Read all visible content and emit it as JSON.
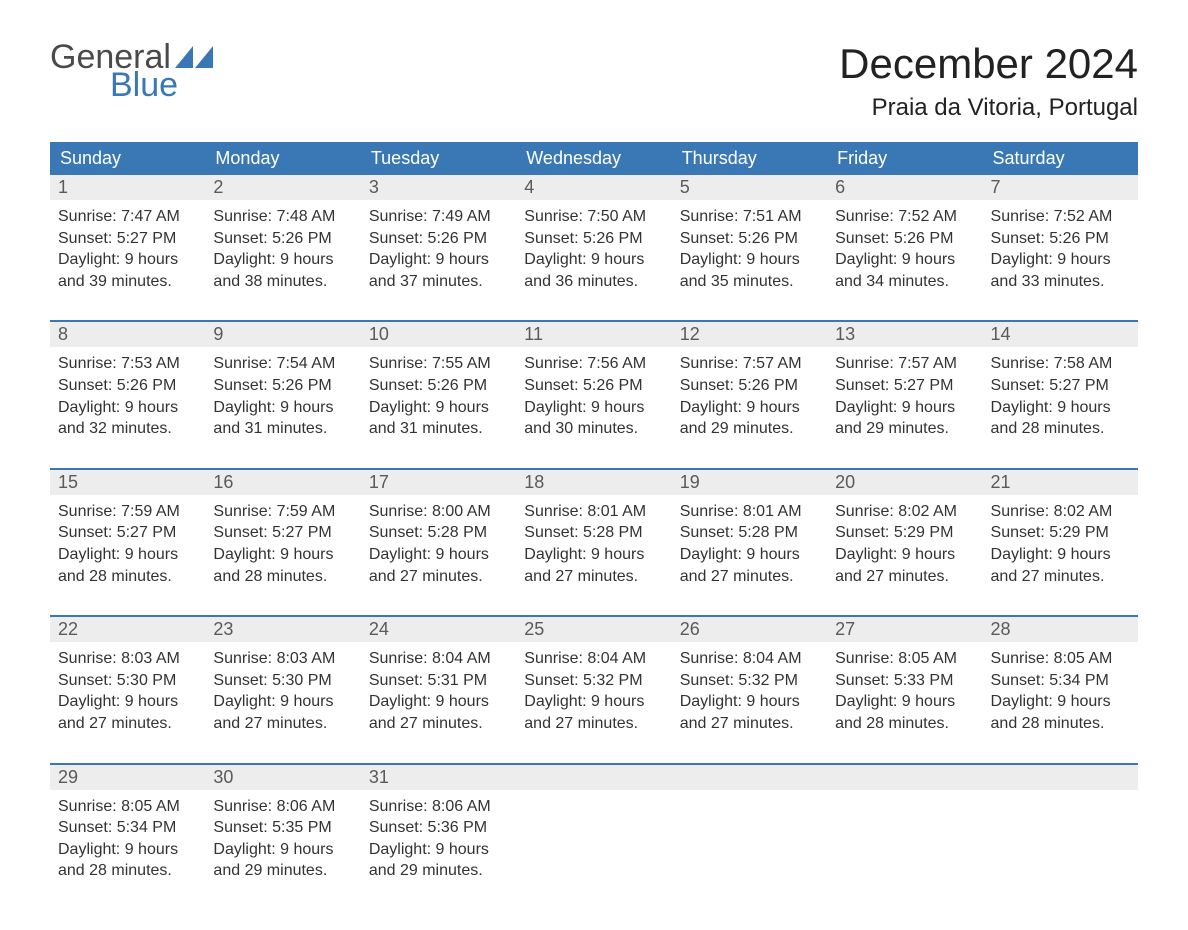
{
  "logo": {
    "part1": "General",
    "part2": "Blue",
    "flag_color": "#3a78b5",
    "text_gray": "#4a4a4a"
  },
  "title": "December 2024",
  "location": "Praia da Vitoria, Portugal",
  "colors": {
    "header_bg": "#3a78b5",
    "header_text": "#ffffff",
    "daynum_bg": "#ededed",
    "daynum_text": "#5a5a5a",
    "body_text": "#333333",
    "separator": "#3a78b5",
    "background": "#ffffff"
  },
  "fonts": {
    "title_size_pt": 32,
    "location_size_pt": 18,
    "header_size_pt": 14,
    "daynum_size_pt": 14,
    "body_size_pt": 12
  },
  "day_names": [
    "Sunday",
    "Monday",
    "Tuesday",
    "Wednesday",
    "Thursday",
    "Friday",
    "Saturday"
  ],
  "weeks": [
    [
      {
        "n": "1",
        "sunrise": "7:47 AM",
        "sunset": "5:27 PM",
        "dl1": "Daylight: 9 hours",
        "dl2": "and 39 minutes."
      },
      {
        "n": "2",
        "sunrise": "7:48 AM",
        "sunset": "5:26 PM",
        "dl1": "Daylight: 9 hours",
        "dl2": "and 38 minutes."
      },
      {
        "n": "3",
        "sunrise": "7:49 AM",
        "sunset": "5:26 PM",
        "dl1": "Daylight: 9 hours",
        "dl2": "and 37 minutes."
      },
      {
        "n": "4",
        "sunrise": "7:50 AM",
        "sunset": "5:26 PM",
        "dl1": "Daylight: 9 hours",
        "dl2": "and 36 minutes."
      },
      {
        "n": "5",
        "sunrise": "7:51 AM",
        "sunset": "5:26 PM",
        "dl1": "Daylight: 9 hours",
        "dl2": "and 35 minutes."
      },
      {
        "n": "6",
        "sunrise": "7:52 AM",
        "sunset": "5:26 PM",
        "dl1": "Daylight: 9 hours",
        "dl2": "and 34 minutes."
      },
      {
        "n": "7",
        "sunrise": "7:52 AM",
        "sunset": "5:26 PM",
        "dl1": "Daylight: 9 hours",
        "dl2": "and 33 minutes."
      }
    ],
    [
      {
        "n": "8",
        "sunrise": "7:53 AM",
        "sunset": "5:26 PM",
        "dl1": "Daylight: 9 hours",
        "dl2": "and 32 minutes."
      },
      {
        "n": "9",
        "sunrise": "7:54 AM",
        "sunset": "5:26 PM",
        "dl1": "Daylight: 9 hours",
        "dl2": "and 31 minutes."
      },
      {
        "n": "10",
        "sunrise": "7:55 AM",
        "sunset": "5:26 PM",
        "dl1": "Daylight: 9 hours",
        "dl2": "and 31 minutes."
      },
      {
        "n": "11",
        "sunrise": "7:56 AM",
        "sunset": "5:26 PM",
        "dl1": "Daylight: 9 hours",
        "dl2": "and 30 minutes."
      },
      {
        "n": "12",
        "sunrise": "7:57 AM",
        "sunset": "5:26 PM",
        "dl1": "Daylight: 9 hours",
        "dl2": "and 29 minutes."
      },
      {
        "n": "13",
        "sunrise": "7:57 AM",
        "sunset": "5:27 PM",
        "dl1": "Daylight: 9 hours",
        "dl2": "and 29 minutes."
      },
      {
        "n": "14",
        "sunrise": "7:58 AM",
        "sunset": "5:27 PM",
        "dl1": "Daylight: 9 hours",
        "dl2": "and 28 minutes."
      }
    ],
    [
      {
        "n": "15",
        "sunrise": "7:59 AM",
        "sunset": "5:27 PM",
        "dl1": "Daylight: 9 hours",
        "dl2": "and 28 minutes."
      },
      {
        "n": "16",
        "sunrise": "7:59 AM",
        "sunset": "5:27 PM",
        "dl1": "Daylight: 9 hours",
        "dl2": "and 28 minutes."
      },
      {
        "n": "17",
        "sunrise": "8:00 AM",
        "sunset": "5:28 PM",
        "dl1": "Daylight: 9 hours",
        "dl2": "and 27 minutes."
      },
      {
        "n": "18",
        "sunrise": "8:01 AM",
        "sunset": "5:28 PM",
        "dl1": "Daylight: 9 hours",
        "dl2": "and 27 minutes."
      },
      {
        "n": "19",
        "sunrise": "8:01 AM",
        "sunset": "5:28 PM",
        "dl1": "Daylight: 9 hours",
        "dl2": "and 27 minutes."
      },
      {
        "n": "20",
        "sunrise": "8:02 AM",
        "sunset": "5:29 PM",
        "dl1": "Daylight: 9 hours",
        "dl2": "and 27 minutes."
      },
      {
        "n": "21",
        "sunrise": "8:02 AM",
        "sunset": "5:29 PM",
        "dl1": "Daylight: 9 hours",
        "dl2": "and 27 minutes."
      }
    ],
    [
      {
        "n": "22",
        "sunrise": "8:03 AM",
        "sunset": "5:30 PM",
        "dl1": "Daylight: 9 hours",
        "dl2": "and 27 minutes."
      },
      {
        "n": "23",
        "sunrise": "8:03 AM",
        "sunset": "5:30 PM",
        "dl1": "Daylight: 9 hours",
        "dl2": "and 27 minutes."
      },
      {
        "n": "24",
        "sunrise": "8:04 AM",
        "sunset": "5:31 PM",
        "dl1": "Daylight: 9 hours",
        "dl2": "and 27 minutes."
      },
      {
        "n": "25",
        "sunrise": "8:04 AM",
        "sunset": "5:32 PM",
        "dl1": "Daylight: 9 hours",
        "dl2": "and 27 minutes."
      },
      {
        "n": "26",
        "sunrise": "8:04 AM",
        "sunset": "5:32 PM",
        "dl1": "Daylight: 9 hours",
        "dl2": "and 27 minutes."
      },
      {
        "n": "27",
        "sunrise": "8:05 AM",
        "sunset": "5:33 PM",
        "dl1": "Daylight: 9 hours",
        "dl2": "and 28 minutes."
      },
      {
        "n": "28",
        "sunrise": "8:05 AM",
        "sunset": "5:34 PM",
        "dl1": "Daylight: 9 hours",
        "dl2": "and 28 minutes."
      }
    ],
    [
      {
        "n": "29",
        "sunrise": "8:05 AM",
        "sunset": "5:34 PM",
        "dl1": "Daylight: 9 hours",
        "dl2": "and 28 minutes."
      },
      {
        "n": "30",
        "sunrise": "8:06 AM",
        "sunset": "5:35 PM",
        "dl1": "Daylight: 9 hours",
        "dl2": "and 29 minutes."
      },
      {
        "n": "31",
        "sunrise": "8:06 AM",
        "sunset": "5:36 PM",
        "dl1": "Daylight: 9 hours",
        "dl2": "and 29 minutes."
      },
      null,
      null,
      null,
      null
    ]
  ],
  "labels": {
    "sunrise_prefix": "Sunrise: ",
    "sunset_prefix": "Sunset: "
  }
}
